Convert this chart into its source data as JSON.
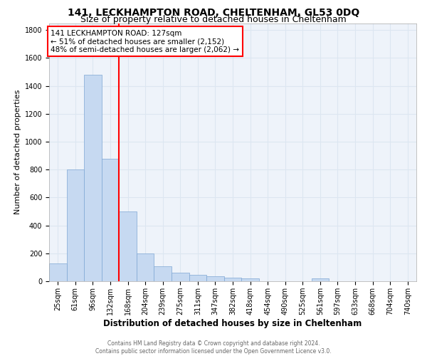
{
  "title1": "141, LECKHAMPTON ROAD, CHELTENHAM, GL53 0DQ",
  "title2": "Size of property relative to detached houses in Cheltenham",
  "xlabel": "Distribution of detached houses by size in Cheltenham",
  "ylabel": "Number of detached properties",
  "categories": [
    "25sqm",
    "61sqm",
    "96sqm",
    "132sqm",
    "168sqm",
    "204sqm",
    "239sqm",
    "275sqm",
    "311sqm",
    "347sqm",
    "382sqm",
    "418sqm",
    "454sqm",
    "490sqm",
    "525sqm",
    "561sqm",
    "597sqm",
    "633sqm",
    "668sqm",
    "704sqm",
    "740sqm"
  ],
  "values": [
    130,
    800,
    1480,
    880,
    500,
    200,
    105,
    60,
    45,
    35,
    25,
    20,
    0,
    0,
    0,
    20,
    0,
    0,
    0,
    0,
    0
  ],
  "bar_color": "#c6d9f1",
  "bar_edge_color": "#7ea6d3",
  "red_line_index": 3,
  "annotation_line1": "141 LECKHAMPTON ROAD: 127sqm",
  "annotation_line2": "← 51% of detached houses are smaller (2,152)",
  "annotation_line3": "48% of semi-detached houses are larger (2,062) →",
  "footer_line1": "Contains HM Land Registry data © Crown copyright and database right 2024.",
  "footer_line2": "Contains public sector information licensed under the Open Government Licence v3.0.",
  "ylim": [
    0,
    1850
  ],
  "bg_color": "#ffffff",
  "grid_color": "#dce6f1",
  "title1_fontsize": 10,
  "title2_fontsize": 9,
  "xlabel_fontsize": 8.5,
  "ylabel_fontsize": 8,
  "tick_fontsize": 7,
  "footer_fontsize": 5.5,
  "annot_fontsize": 7.5
}
